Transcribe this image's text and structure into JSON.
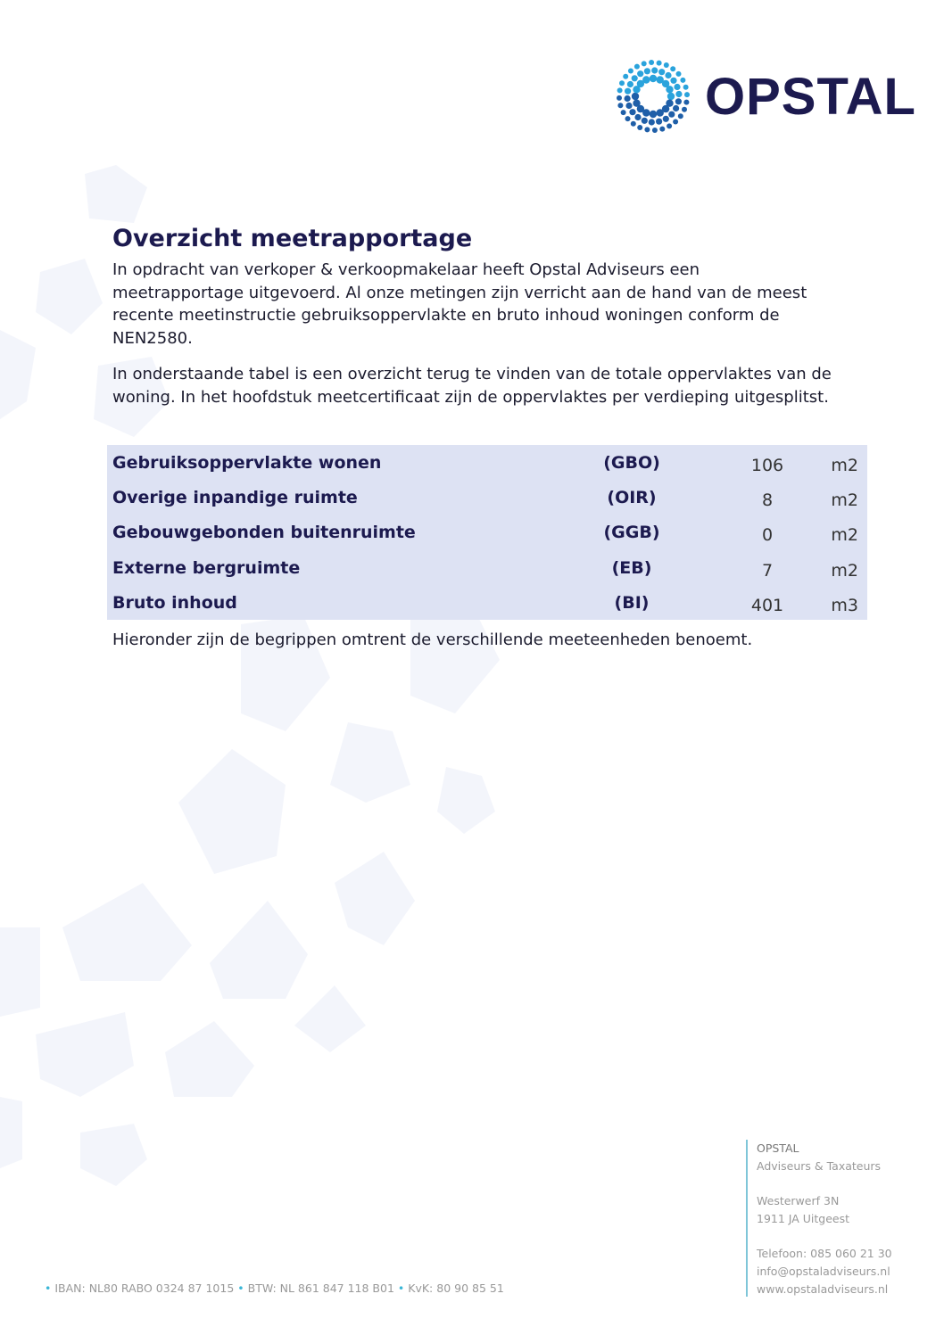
{
  "logo": {
    "text": "OPSTAL"
  },
  "title": "Overzicht meetrapportage",
  "paragraphs": [
    "In opdracht van verkoper & verkoopmakelaar heeft Opstal Adviseurs een meetrapportage uitgevoerd. Al onze metingen zijn verricht aan de hand van de meest recente meetinstructie gebruiksoppervlakte en bruto inhoud woningen conform de NEN2580.",
    "In onderstaande tabel is een overzicht terug te vinden van de totale oppervlaktes van de woning. In het hoofdstuk meetcertificaat zijn de oppervlaktes per verdieping uitgesplitst.",
    "Hieronder zijn de begrippen omtrent de verschillende meeteenheden benoemt."
  ],
  "table": [
    {
      "label": "Gebruiksoppervlakte wonen",
      "code": "(GBO)",
      "value": "106",
      "unit": "m2"
    },
    {
      "label": "Overige inpandige ruimte",
      "code": "(OIR)",
      "value": "8",
      "unit": "m2"
    },
    {
      "label": "Gebouwgebonden buitenruimte",
      "code": "(GGB)",
      "value": "0",
      "unit": "m2"
    },
    {
      "label": "Externe bergruimte",
      "code": "(EB)",
      "value": "7",
      "unit": "m2"
    },
    {
      "label": "Bruto inhoud",
      "code": "(BI)",
      "value": "401",
      "unit": "m3"
    }
  ],
  "address": {
    "company": "OPSTAL",
    "tagline": "Adviseurs & Taxateurs",
    "street": "Westerwerf 3N",
    "city": "1911 JA Uitgeest",
    "phone": "Telefoon: 085 060 21 30",
    "email": "info@opstaladviseurs.nl",
    "web": "www.opstaladviseurs.nl"
  },
  "footer": {
    "iban": "IBAN: NL80 RABO 0324 87 1015",
    "btw": "BTW: NL 861 847 118 B01",
    "kvk": "KvK: 80 90 85 51"
  }
}
